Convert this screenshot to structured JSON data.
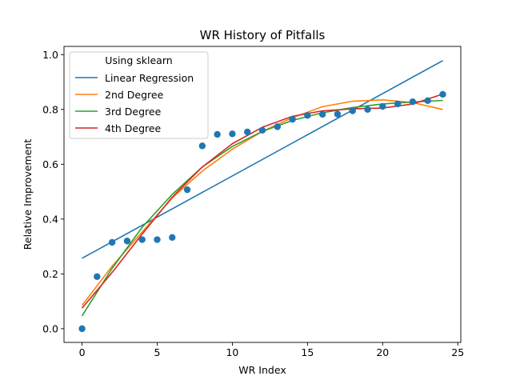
{
  "chart_data": {
    "type": "scatter",
    "title": "WR History of Pitfalls",
    "xlabel": "WR Index",
    "ylabel": "Relative Improvement",
    "xlim": [
      -1.2,
      25.2
    ],
    "ylim": [
      -0.05,
      1.03
    ],
    "xticks": [
      0,
      5,
      10,
      15,
      20,
      25
    ],
    "yticks": [
      0.0,
      0.2,
      0.4,
      0.6,
      0.8,
      1.0
    ],
    "xtick_labels": [
      "0",
      "5",
      "10",
      "15",
      "20",
      "25"
    ],
    "ytick_labels": [
      "0.0",
      "0.2",
      "0.4",
      "0.6",
      "0.8",
      "1.0"
    ],
    "grid": false,
    "legend": {
      "title": "Using sklearn",
      "placement": "top-left"
    },
    "points": {
      "color": "#1f77b4",
      "x": [
        0,
        1,
        2,
        3,
        4,
        5,
        6,
        7,
        8,
        9,
        10,
        11,
        12,
        13,
        14,
        15,
        16,
        17,
        18,
        19,
        20,
        21,
        22,
        23,
        24
      ],
      "y": [
        0.0,
        0.19,
        0.315,
        0.32,
        0.325,
        0.325,
        0.333,
        0.507,
        0.667,
        0.709,
        0.711,
        0.718,
        0.724,
        0.737,
        0.764,
        0.778,
        0.782,
        0.783,
        0.795,
        0.8,
        0.811,
        0.82,
        0.828,
        0.832,
        0.855
      ]
    },
    "series": [
      {
        "name": "Linear Regression",
        "color": "#1f77b4",
        "x": [
          0,
          24
        ],
        "y": [
          0.257,
          0.978
        ]
      },
      {
        "name": "2nd Degree",
        "color": "#ff7f0e",
        "x": [
          0,
          2,
          4,
          6,
          8,
          10,
          12,
          14,
          16,
          18,
          20,
          22,
          24
        ],
        "y": [
          0.085,
          0.228,
          0.353,
          0.477,
          0.575,
          0.655,
          0.72,
          0.77,
          0.81,
          0.83,
          0.835,
          0.825,
          0.8
        ]
      },
      {
        "name": "3rd Degree",
        "color": "#2ca02c",
        "x": [
          0,
          2,
          4,
          6,
          8,
          10,
          12,
          14,
          16,
          18,
          20,
          22,
          24
        ],
        "y": [
          0.047,
          0.22,
          0.37,
          0.49,
          0.59,
          0.665,
          0.72,
          0.76,
          0.788,
          0.807,
          0.82,
          0.827,
          0.833
        ]
      },
      {
        "name": "4th Degree",
        "color": "#d62728",
        "x": [
          0,
          2,
          4,
          6,
          8,
          10,
          12,
          14,
          16,
          18,
          20,
          22,
          24
        ],
        "y": [
          0.075,
          0.205,
          0.345,
          0.48,
          0.59,
          0.675,
          0.735,
          0.775,
          0.795,
          0.802,
          0.805,
          0.82,
          0.856
        ]
      }
    ]
  }
}
